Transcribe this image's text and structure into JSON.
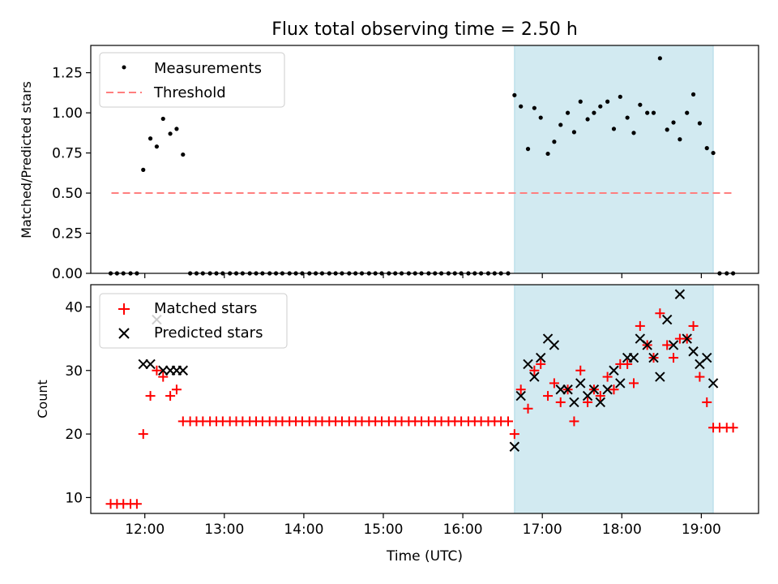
{
  "title": "Flux total observing time = 2.50 h",
  "colors": {
    "highlight": "#add8e6",
    "threshold": "#ff7f7f",
    "matched": "#ff0000",
    "predicted": "#000000",
    "measurement": "#000000"
  },
  "chart_data": [
    {
      "type": "scatter",
      "ylabel": "Matched/Predicted stars",
      "ylim": [
        0,
        1.42
      ],
      "yticks": [
        "0.00",
        "0.25",
        "0.50",
        "0.75",
        "1.00",
        "1.25"
      ],
      "ytick_values": [
        0,
        0.25,
        0.5,
        0.75,
        1.0,
        1.25
      ],
      "xlim": [
        11.32,
        19.72
      ],
      "highlight_span": [
        16.65,
        19.15
      ],
      "legend": {
        "position": "top-left",
        "entries": [
          "Measurements",
          "Threshold"
        ]
      },
      "threshold": {
        "name": "Threshold",
        "value": 0.5,
        "x_range": [
          11.58,
          19.38
        ]
      },
      "series": [
        {
          "name": "Measurements",
          "marker": "dot",
          "x": [
            11.57,
            11.65,
            11.73,
            11.82,
            11.9,
            11.98,
            12.07,
            12.15,
            12.23,
            12.32,
            12.4,
            12.48,
            12.57,
            12.65,
            12.73,
            12.82,
            12.9,
            12.98,
            13.07,
            13.15,
            13.23,
            13.32,
            13.4,
            13.48,
            13.57,
            13.65,
            13.73,
            13.82,
            13.9,
            13.98,
            14.07,
            14.15,
            14.23,
            14.32,
            14.4,
            14.48,
            14.57,
            14.65,
            14.73,
            14.82,
            14.9,
            14.98,
            15.07,
            15.15,
            15.23,
            15.32,
            15.4,
            15.48,
            15.57,
            15.65,
            15.73,
            15.82,
            15.9,
            15.98,
            16.07,
            16.15,
            16.23,
            16.32,
            16.4,
            16.48,
            16.57,
            16.65,
            16.73,
            16.82,
            16.9,
            16.98,
            17.07,
            17.15,
            17.23,
            17.32,
            17.4,
            17.48,
            17.57,
            17.65,
            17.73,
            17.82,
            17.9,
            17.98,
            18.07,
            18.15,
            18.23,
            18.32,
            18.4,
            18.48,
            18.57,
            18.65,
            18.73,
            18.82,
            18.9,
            18.98,
            19.07,
            19.15,
            19.23,
            19.32,
            19.4
          ],
          "y": [
            0,
            0,
            0,
            0,
            0,
            0.645,
            0.84,
            0.79,
            0.963,
            0.87,
            0.9,
            0.74,
            0,
            0,
            0,
            0,
            0,
            0,
            0,
            0,
            0,
            0,
            0,
            0,
            0,
            0,
            0,
            0,
            0,
            0,
            0,
            0,
            0,
            0,
            0,
            0,
            0,
            0,
            0,
            0,
            0,
            0,
            0,
            0,
            0,
            0,
            0,
            0,
            0,
            0,
            0,
            0,
            0,
            0,
            0,
            0,
            0,
            0,
            0,
            0,
            0,
            1.11,
            1.04,
            0.775,
            1.03,
            0.97,
            0.745,
            0.82,
            0.925,
            1.0,
            0.88,
            1.07,
            0.96,
            1.0,
            1.04,
            1.07,
            0.9,
            1.1,
            0.97,
            0.875,
            1.05,
            1.0,
            1.0,
            1.34,
            0.895,
            0.94,
            0.835,
            1.0,
            1.115,
            0.935,
            0.78,
            0.75,
            0,
            0,
            0
          ]
        }
      ]
    },
    {
      "type": "scatter",
      "xlabel": "Time (UTC)",
      "ylabel": "Count",
      "ylim": [
        7.5,
        43.5
      ],
      "yticks": [
        "10",
        "20",
        "30",
        "40"
      ],
      "ytick_values": [
        10,
        20,
        30,
        40
      ],
      "xlim": [
        11.32,
        19.72
      ],
      "xticks": [
        "12:00",
        "13:00",
        "14:00",
        "15:00",
        "16:00",
        "17:00",
        "18:00",
        "19:00"
      ],
      "xtick_values": [
        12,
        13,
        14,
        15,
        16,
        17,
        18,
        19
      ],
      "highlight_span": [
        16.65,
        19.15
      ],
      "legend": {
        "position": "top-left",
        "entries": [
          "Matched stars",
          "Predicted stars"
        ]
      },
      "series": [
        {
          "name": "Matched stars",
          "marker": "plus",
          "x": [
            11.57,
            11.65,
            11.73,
            11.82,
            11.9,
            11.98,
            12.07,
            12.15,
            12.23,
            12.32,
            12.4,
            12.48,
            12.57,
            12.65,
            12.73,
            12.82,
            12.9,
            12.98,
            13.07,
            13.15,
            13.23,
            13.32,
            13.4,
            13.48,
            13.57,
            13.65,
            13.73,
            13.82,
            13.9,
            13.98,
            14.07,
            14.15,
            14.23,
            14.32,
            14.4,
            14.48,
            14.57,
            14.65,
            14.73,
            14.82,
            14.9,
            14.98,
            15.07,
            15.15,
            15.23,
            15.32,
            15.4,
            15.48,
            15.57,
            15.65,
            15.73,
            15.82,
            15.9,
            15.98,
            16.07,
            16.15,
            16.23,
            16.32,
            16.4,
            16.48,
            16.57,
            16.65,
            16.73,
            16.82,
            16.9,
            16.98,
            17.07,
            17.15,
            17.23,
            17.32,
            17.4,
            17.48,
            17.57,
            17.65,
            17.73,
            17.82,
            17.9,
            17.98,
            18.07,
            18.15,
            18.23,
            18.32,
            18.4,
            18.48,
            18.57,
            18.65,
            18.73,
            18.82,
            18.9,
            18.98,
            19.07,
            19.15,
            19.23,
            19.32,
            19.4
          ],
          "y": [
            9,
            9,
            9,
            9,
            9,
            20,
            26,
            30,
            29,
            26,
            27,
            22,
            22,
            22,
            22,
            22,
            22,
            22,
            22,
            22,
            22,
            22,
            22,
            22,
            22,
            22,
            22,
            22,
            22,
            22,
            22,
            22,
            22,
            22,
            22,
            22,
            22,
            22,
            22,
            22,
            22,
            22,
            22,
            22,
            22,
            22,
            22,
            22,
            22,
            22,
            22,
            22,
            22,
            22,
            22,
            22,
            22,
            22,
            22,
            22,
            22,
            20,
            27,
            24,
            30,
            31,
            26,
            28,
            25,
            27,
            22,
            30,
            25,
            27,
            26,
            29,
            27,
            31,
            31,
            28,
            37,
            34,
            32,
            39,
            34,
            32,
            35,
            35,
            37,
            29,
            25,
            21,
            21,
            21,
            21
          ]
        },
        {
          "name": "Predicted stars",
          "marker": "x",
          "x": [
            11.98,
            12.07,
            12.15,
            12.23,
            12.32,
            12.4,
            12.48,
            16.65,
            16.73,
            16.82,
            16.9,
            16.98,
            17.07,
            17.15,
            17.23,
            17.32,
            17.4,
            17.48,
            17.57,
            17.65,
            17.73,
            17.82,
            17.9,
            17.98,
            18.07,
            18.15,
            18.23,
            18.32,
            18.4,
            18.48,
            18.57,
            18.65,
            18.73,
            18.82,
            18.9,
            18.98,
            19.07,
            19.15
          ],
          "y": [
            31,
            31,
            38,
            30,
            30,
            30,
            30,
            18,
            26,
            31,
            29,
            32,
            35,
            34,
            27,
            27,
            25,
            28,
            26,
            27,
            25,
            27,
            30,
            28,
            32,
            32,
            35,
            34,
            32,
            29,
            38,
            34,
            42,
            35,
            33,
            31,
            32,
            28
          ]
        }
      ]
    }
  ]
}
